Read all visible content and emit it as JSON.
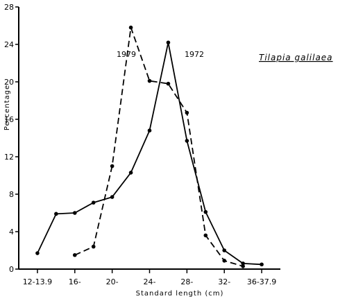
{
  "chart_data": {
    "type": "line",
    "title": "",
    "xlabel": "Standard length (cm)",
    "ylabel": "Percentage",
    "xlim": [
      11,
      39
    ],
    "ylim": [
      0,
      28
    ],
    "x_ticks": [
      {
        "x": 13,
        "label": "12-13.9"
      },
      {
        "x": 17,
        "label": "16-"
      },
      {
        "x": 21,
        "label": "20-"
      },
      {
        "x": 25,
        "label": "24-"
      },
      {
        "x": 29,
        "label": "28-"
      },
      {
        "x": 33,
        "label": "32-"
      },
      {
        "x": 37,
        "label": "36-37.9"
      }
    ],
    "y_ticks": [
      0,
      4,
      8,
      12,
      16,
      20,
      24,
      28
    ],
    "annotation": "Tilapia galilaea",
    "grid": false,
    "series": [
      {
        "name": "1972",
        "style": "solid",
        "color": "#000000",
        "points": [
          [
            13,
            1.7
          ],
          [
            15,
            5.9
          ],
          [
            17,
            6.0
          ],
          [
            19,
            7.1
          ],
          [
            21,
            7.7
          ],
          [
            23,
            10.3
          ],
          [
            25,
            14.8
          ],
          [
            27,
            24.2
          ],
          [
            29,
            13.7
          ],
          [
            31,
            6.1
          ],
          [
            33,
            2.0
          ],
          [
            35,
            0.6
          ],
          [
            37,
            0.5
          ]
        ]
      },
      {
        "name": "1979",
        "style": "dashed",
        "color": "#000000",
        "points": [
          [
            17,
            1.5
          ],
          [
            19,
            2.4
          ],
          [
            21,
            11.0
          ],
          [
            23,
            25.8
          ],
          [
            25,
            20.1
          ],
          [
            27,
            19.8
          ],
          [
            29,
            16.7
          ],
          [
            31,
            3.6
          ],
          [
            33,
            0.9
          ],
          [
            35,
            0.3
          ]
        ]
      }
    ]
  }
}
